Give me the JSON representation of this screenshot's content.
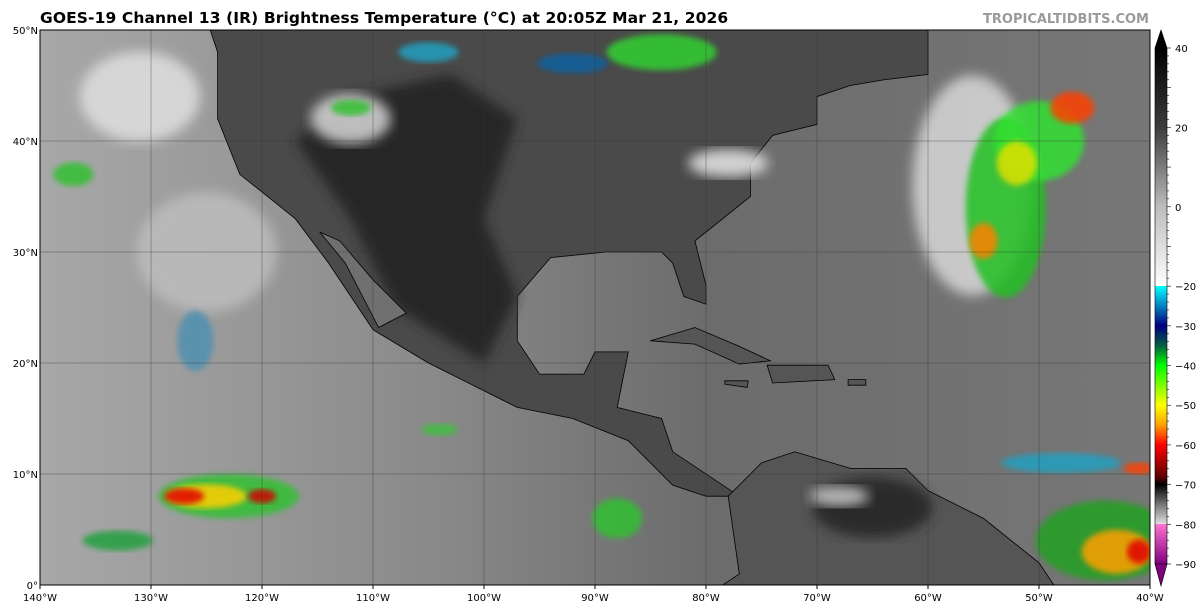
{
  "title": "GOES-19 Channel 13 (IR) Brightness Temperature (°C) at 20:05Z Mar 21, 2026",
  "brand": "TROPICALTIDBITS.COM",
  "map": {
    "lon_range": [
      -140,
      -40
    ],
    "lat_range": [
      0,
      50
    ],
    "lon_ticks": [
      "140°W",
      "130°W",
      "120°W",
      "110°W",
      "100°W",
      "90°W",
      "80°W",
      "70°W",
      "60°W",
      "50°W",
      "40°W"
    ],
    "lat_ticks": [
      "0°",
      "10°N",
      "20°N",
      "30°N",
      "40°N",
      "50°N"
    ],
    "gridlines": true
  },
  "colorbar": {
    "range": [
      -90,
      40
    ],
    "extend": "both",
    "ticks": [
      "40",
      "20",
      "0",
      "−20",
      "−30",
      "−40",
      "−50",
      "−60",
      "−70",
      "−80",
      "−90"
    ],
    "tick_values": [
      40,
      20,
      0,
      -20,
      -30,
      -40,
      -50,
      -60,
      -70,
      -80,
      -90
    ],
    "stops": [
      {
        "v": 40,
        "c": "#000000"
      },
      {
        "v": 20,
        "c": "#3c3c3c"
      },
      {
        "v": 0,
        "c": "#bcbcbc"
      },
      {
        "v": -19.9,
        "c": "#ffffff"
      },
      {
        "v": -20,
        "c": "#00ffff"
      },
      {
        "v": -25,
        "c": "#0080c0"
      },
      {
        "v": -30,
        "c": "#000080"
      },
      {
        "v": -35,
        "c": "#006040"
      },
      {
        "v": -40,
        "c": "#00ff00"
      },
      {
        "v": -50,
        "c": "#ffff00"
      },
      {
        "v": -55,
        "c": "#ffa000"
      },
      {
        "v": -60,
        "c": "#ff0000"
      },
      {
        "v": -68,
        "c": "#600000"
      },
      {
        "v": -70,
        "c": "#000000"
      },
      {
        "v": -75,
        "c": "#777777"
      },
      {
        "v": -79.9,
        "c": "#dddddd"
      },
      {
        "v": -80,
        "c": "#ff70d0"
      },
      {
        "v": -90,
        "c": "#800080"
      }
    ]
  },
  "colors": {
    "ocean": "#6c6c6c",
    "ocean_west": "#9c9c9c",
    "land_dark": "#262626",
    "land_mid": "#4a4a4a"
  }
}
